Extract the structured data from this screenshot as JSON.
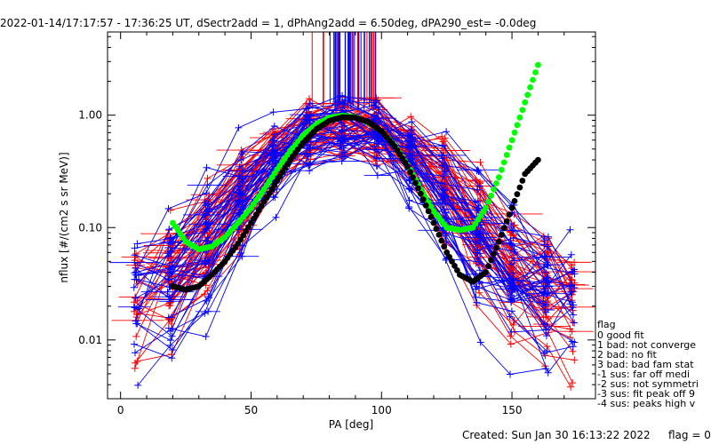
{
  "header": {
    "title": "2022-01-14/17:17:57 - 17:36:25 UT, dSectr2add = 1, dPhAng2add = 6.50deg, dPA290_est=  -0.0deg"
  },
  "footer": {
    "created": "Created: Sun Jan 30 16:13:22 2022",
    "flag": "flag = 0"
  },
  "legend": {
    "title": "flag",
    "items": [
      " 0 good fit",
      " 1 bad: not converge",
      " 2 bad: no fit",
      " 3 bad: bad fam stat",
      "-1 sus: far off medi",
      "-2 sus: not symmetri",
      "-3 sus: fit peak off 9",
      "-4 sus: peaks high v"
    ]
  },
  "colors": {
    "red": "#ff0000",
    "blue": "#0000ff",
    "green": "#00ff00",
    "black": "#000000"
  },
  "chart_data": {
    "type": "line",
    "xlabel": "PA [deg]",
    "ylabel": "nflux [#/(cm2 s sr MeV)]",
    "x_ticks": [
      "0",
      "50",
      "100",
      "150"
    ],
    "y_ticks": [
      "0.01",
      "0.10",
      "1.00"
    ],
    "xlim": [
      -5,
      182
    ],
    "ylim": [
      0.003,
      5.5
    ],
    "yscale": "log",
    "grid": false,
    "series": [
      {
        "color": "green",
        "style": "thick-dots",
        "x": [
          20,
          25,
          30,
          35,
          40,
          45,
          50,
          55,
          60,
          65,
          70,
          75,
          80,
          85,
          90,
          95,
          100,
          105,
          110,
          115,
          120,
          125,
          130,
          135,
          140,
          145,
          150,
          155,
          160
        ],
        "y": [
          0.11,
          0.075,
          0.064,
          0.068,
          0.082,
          0.11,
          0.15,
          0.22,
          0.33,
          0.48,
          0.66,
          0.83,
          0.95,
          0.99,
          0.96,
          0.86,
          0.72,
          0.54,
          0.36,
          0.22,
          0.14,
          0.1,
          0.095,
          0.1,
          0.15,
          0.28,
          0.6,
          1.3,
          2.8
        ]
      },
      {
        "color": "black",
        "style": "thick-dots",
        "x": [
          20,
          25,
          30,
          35,
          40,
          45,
          50,
          55,
          60,
          65,
          70,
          75,
          80,
          85,
          90,
          95,
          100,
          105,
          110,
          115,
          120,
          125,
          130,
          135,
          140,
          145,
          150,
          155,
          160
        ],
        "y": [
          0.03,
          0.028,
          0.03,
          0.038,
          0.05,
          0.072,
          0.11,
          0.17,
          0.26,
          0.4,
          0.57,
          0.75,
          0.89,
          0.96,
          0.95,
          0.87,
          0.72,
          0.53,
          0.35,
          0.2,
          0.11,
          0.06,
          0.038,
          0.033,
          0.04,
          0.075,
          0.15,
          0.3,
          0.4
        ]
      }
    ],
    "bundles": [
      {
        "color": "red",
        "count": 45,
        "seed": 11
      },
      {
        "color": "blue",
        "count": 40,
        "seed": 29
      }
    ]
  }
}
